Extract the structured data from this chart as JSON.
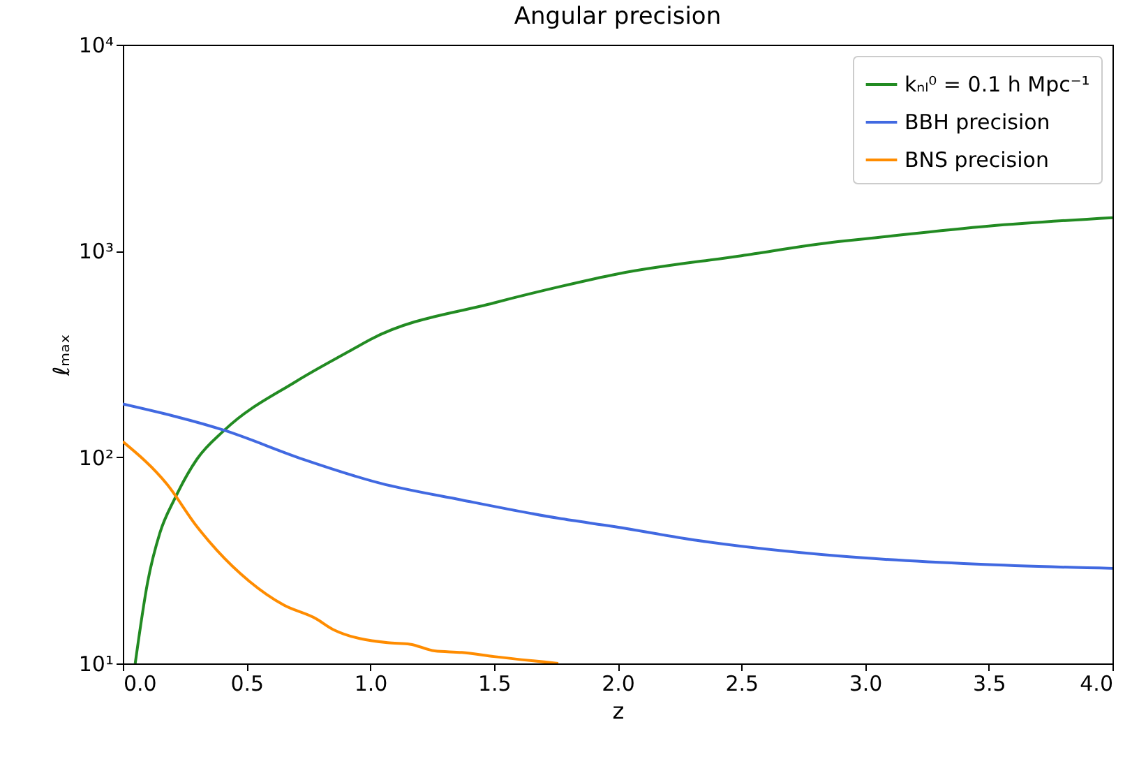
{
  "chart_data": {
    "type": "line",
    "title": "Angular precision",
    "xlabel": "z",
    "ylabel": "ℓₘₐₓ",
    "series": [
      {
        "name": "kₙₗ⁰ = 0.1 h Mpc⁻¹",
        "color": "#228b22",
        "x": [
          0.05,
          0.1,
          0.15,
          0.21,
          0.3,
          0.41,
          0.7,
          0.93,
          1.0,
          1.5,
          1.77,
          2.0,
          2.5,
          2.89,
          3.0,
          3.5,
          4.0
        ],
        "values": [
          10,
          24.7,
          43,
          63,
          98,
          135,
          233,
          334,
          372,
          560,
          673,
          774,
          948,
          1109,
          1145,
          1320,
          1450
        ]
      },
      {
        "name": "BBH precision",
        "color": "#4169e1",
        "x": [
          0,
          0.41,
          0.73,
          1.04,
          1.37,
          1.76,
          1.99,
          2.32,
          2.89,
          3.45,
          4.0
        ],
        "values": [
          181,
          135,
          97.6,
          74.8,
          62,
          50.6,
          46,
          39.5,
          33.2,
          30.3,
          28.9
        ]
      },
      {
        "name": "BNS precision",
        "color": "#ff8c00",
        "x": [
          0,
          0.18,
          0.3,
          0.38,
          0.51,
          0.65,
          0.78,
          0.85,
          1.07,
          1.16,
          1.26,
          1.37,
          1.5,
          1.76
        ],
        "values": [
          119,
          73.6,
          46,
          35.4,
          25.1,
          19.2,
          16.5,
          14.6,
          12.6,
          12.4,
          11.5,
          11.3,
          10.8,
          10
        ]
      }
    ],
    "xlim": [
      0,
      4
    ],
    "xticks": [
      {
        "value": 0,
        "label": "0.0"
      },
      {
        "value": 0.5,
        "label": "0.5"
      },
      {
        "value": 1,
        "label": "1.0"
      },
      {
        "value": 1.5,
        "label": "1.5"
      },
      {
        "value": 2,
        "label": "2.0"
      },
      {
        "value": 2.5,
        "label": "2.5"
      },
      {
        "value": 3,
        "label": "3.0"
      },
      {
        "value": 3.5,
        "label": "3.5"
      },
      {
        "value": 4,
        "label": "4.0"
      }
    ],
    "ylim": [
      10,
      10000
    ],
    "yticks": [
      {
        "value": 10,
        "label": "10¹"
      },
      {
        "value": 100,
        "label": "10²"
      },
      {
        "value": 1000,
        "label": "10³"
      },
      {
        "value": 10000,
        "label": "10⁴"
      }
    ],
    "log": "y",
    "grid": false,
    "legend": "top right",
    "line_style": "solid"
  }
}
